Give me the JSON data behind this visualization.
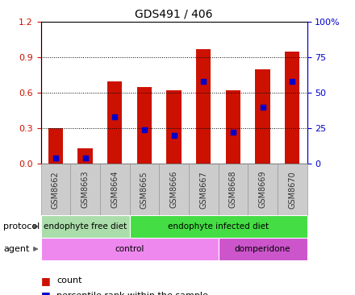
{
  "title": "GDS491 / 406",
  "samples": [
    "GSM8662",
    "GSM8663",
    "GSM8664",
    "GSM8665",
    "GSM8666",
    "GSM8667",
    "GSM8668",
    "GSM8669",
    "GSM8670"
  ],
  "counts": [
    0.3,
    0.13,
    0.7,
    0.65,
    0.62,
    0.97,
    0.62,
    0.8,
    0.95
  ],
  "percentiles_pct": [
    4,
    4,
    33,
    24,
    20,
    58,
    22,
    40,
    58
  ],
  "ylim_left": [
    0,
    1.2
  ],
  "ylim_right": [
    0,
    100
  ],
  "yticks_left": [
    0,
    0.3,
    0.6,
    0.9,
    1.2
  ],
  "yticks_right": [
    0,
    25,
    50,
    75,
    100
  ],
  "protocol_groups": [
    {
      "label": "endophyte free diet",
      "start": 0,
      "end": 3,
      "color": "#aaddaa"
    },
    {
      "label": "endophyte infected diet",
      "start": 3,
      "end": 9,
      "color": "#44dd44"
    }
  ],
  "agent_groups": [
    {
      "label": "control",
      "start": 0,
      "end": 6,
      "color": "#ee88ee"
    },
    {
      "label": "domperidone",
      "start": 6,
      "end": 9,
      "color": "#cc55cc"
    }
  ],
  "bar_color": "#cc1100",
  "percentile_color": "#0000cc",
  "grid_color": "#000000",
  "background_color": "#ffffff",
  "left_axis_color": "#cc1100",
  "right_axis_color": "#0000cc",
  "bar_width": 0.5,
  "xtick_bg_color": "#cccccc",
  "xtick_border_color": "#999999"
}
